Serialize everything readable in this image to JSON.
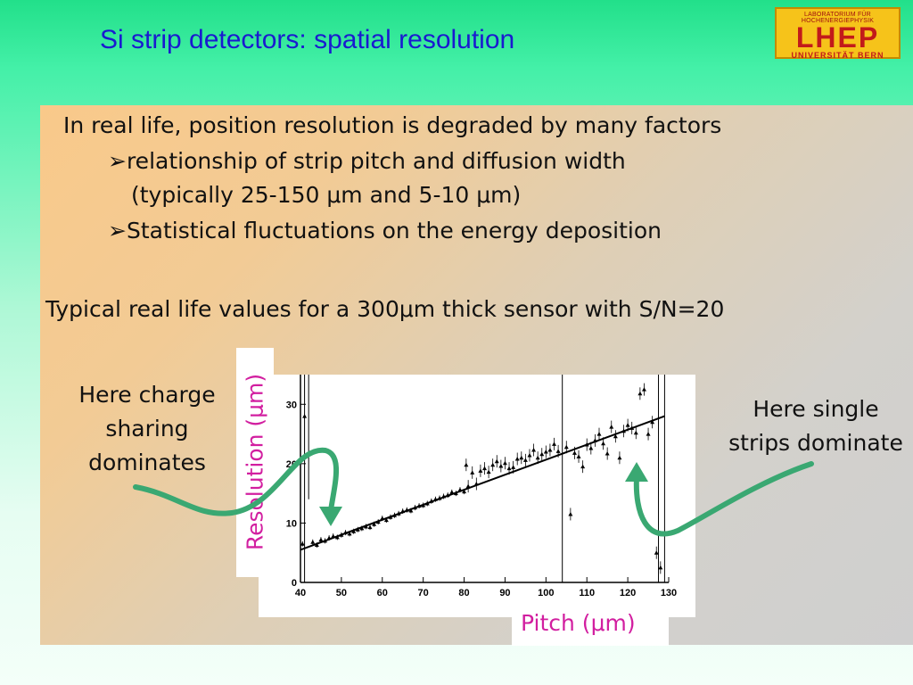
{
  "slide": {
    "title": "Si strip detectors: spatial resolution"
  },
  "logo": {
    "top": "LABORATORIUM FÜR HOCHENERGIEPHYSIK",
    "main": "LHEP",
    "bottom": "UNIVERSITÄT BERN",
    "colors": {
      "background": "#f6c31a",
      "text": "#c21a1a"
    }
  },
  "content": {
    "intro": "In real life, position resolution is degraded by many factors",
    "bullets": [
      {
        "marker": "➢",
        "text": "relationship of strip pitch and diffusion width",
        "continuation": "(typically 25-150 μm and 5-10 μm)"
      },
      {
        "marker": "➢",
        "text": "Statistical fluctuations on the energy deposition"
      }
    ],
    "typical": "Typical real life values for a 300μm thick sensor with S/N=20"
  },
  "annotations": {
    "left": [
      "Here charge",
      "sharing",
      "dominates"
    ],
    "right": [
      "Here single",
      "strips dominate"
    ],
    "arrow_color": "#3aa872"
  },
  "chart_data": {
    "type": "scatter",
    "xlabel": "Pitch (μm)",
    "ylabel": "Resolution (μm)",
    "xlim": [
      40,
      130
    ],
    "ylim": [
      0,
      35
    ],
    "x_ticks": [
      40,
      50,
      60,
      70,
      80,
      90,
      100,
      110,
      120,
      130
    ],
    "y_ticks": [
      0,
      10,
      20,
      30
    ],
    "label_color": "#d21fa0",
    "fit_line": {
      "x": [
        40,
        129
      ],
      "y": [
        5.5,
        28.0
      ]
    },
    "points": [
      {
        "x": 40.5,
        "y": 6.5
      },
      {
        "x": 41,
        "y": 28
      },
      {
        "x": 43,
        "y": 6.8
      },
      {
        "x": 44,
        "y": 6.3
      },
      {
        "x": 45,
        "y": 7.2
      },
      {
        "x": 46,
        "y": 7.0
      },
      {
        "x": 47,
        "y": 7.5
      },
      {
        "x": 48,
        "y": 7.8
      },
      {
        "x": 49,
        "y": 7.6
      },
      {
        "x": 50,
        "y": 8.0
      },
      {
        "x": 51,
        "y": 8.4
      },
      {
        "x": 52,
        "y": 8.2
      },
      {
        "x": 53,
        "y": 8.6
      },
      {
        "x": 54,
        "y": 8.9
      },
      {
        "x": 55,
        "y": 9.1
      },
      {
        "x": 56,
        "y": 9.4
      },
      {
        "x": 57,
        "y": 9.3
      },
      {
        "x": 58,
        "y": 9.8
      },
      {
        "x": 59,
        "y": 10.2
      },
      {
        "x": 60,
        "y": 10.8
      },
      {
        "x": 61,
        "y": 10.5
      },
      {
        "x": 62,
        "y": 11.0
      },
      {
        "x": 63,
        "y": 11.3
      },
      {
        "x": 64,
        "y": 11.6
      },
      {
        "x": 65,
        "y": 12.0
      },
      {
        "x": 66,
        "y": 12.2
      },
      {
        "x": 67,
        "y": 12.1
      },
      {
        "x": 68,
        "y": 12.6
      },
      {
        "x": 69,
        "y": 12.9
      },
      {
        "x": 70,
        "y": 13.0
      },
      {
        "x": 71,
        "y": 13.3
      },
      {
        "x": 72,
        "y": 13.7
      },
      {
        "x": 73,
        "y": 14.0
      },
      {
        "x": 74,
        "y": 14.2
      },
      {
        "x": 75,
        "y": 14.5
      },
      {
        "x": 76,
        "y": 14.7
      },
      {
        "x": 77,
        "y": 15.2
      },
      {
        "x": 78,
        "y": 15.0
      },
      {
        "x": 79,
        "y": 15.6
      },
      {
        "x": 80,
        "y": 15.3
      },
      {
        "x": 80.5,
        "y": 19.8
      },
      {
        "x": 81,
        "y": 16.2
      },
      {
        "x": 82,
        "y": 18.5
      },
      {
        "x": 83,
        "y": 16.6
      },
      {
        "x": 84,
        "y": 18.8
      },
      {
        "x": 85,
        "y": 19.2
      },
      {
        "x": 86,
        "y": 18.6
      },
      {
        "x": 87,
        "y": 19.8
      },
      {
        "x": 88,
        "y": 20.4
      },
      {
        "x": 89,
        "y": 19.6
      },
      {
        "x": 90,
        "y": 20.1
      },
      {
        "x": 91,
        "y": 19.2
      },
      {
        "x": 92,
        "y": 19.4
      },
      {
        "x": 93,
        "y": 20.8
      },
      {
        "x": 94,
        "y": 21.0
      },
      {
        "x": 95,
        "y": 20.6
      },
      {
        "x": 96,
        "y": 21.4
      },
      {
        "x": 97,
        "y": 22.3
      },
      {
        "x": 98,
        "y": 21.0
      },
      {
        "x": 99,
        "y": 21.6
      },
      {
        "x": 100,
        "y": 22.0
      },
      {
        "x": 101,
        "y": 22.3
      },
      {
        "x": 102,
        "y": 23.3
      },
      {
        "x": 103,
        "y": 22.1
      },
      {
        "x": 105,
        "y": 22.8
      },
      {
        "x": 106,
        "y": 11.5
      },
      {
        "x": 107,
        "y": 21.8
      },
      {
        "x": 108,
        "y": 21.2
      },
      {
        "x": 109,
        "y": 19.5
      },
      {
        "x": 110,
        "y": 23.2
      },
      {
        "x": 111,
        "y": 22.6
      },
      {
        "x": 112,
        "y": 23.9
      },
      {
        "x": 113,
        "y": 25.0
      },
      {
        "x": 114,
        "y": 23.4
      },
      {
        "x": 115,
        "y": 21.7
      },
      {
        "x": 116,
        "y": 26.2
      },
      {
        "x": 117,
        "y": 24.6
      },
      {
        "x": 118,
        "y": 21.0
      },
      {
        "x": 119,
        "y": 25.5
      },
      {
        "x": 120,
        "y": 26.5
      },
      {
        "x": 121,
        "y": 26.0
      },
      {
        "x": 122,
        "y": 25.2
      },
      {
        "x": 123,
        "y": 31.8
      },
      {
        "x": 124,
        "y": 32.5
      },
      {
        "x": 125,
        "y": 25.0
      },
      {
        "x": 126,
        "y": 27.0
      },
      {
        "x": 127,
        "y": 5.0
      },
      {
        "x": 128,
        "y": 2.5
      }
    ],
    "long_error_bars": [
      {
        "x": 41,
        "y0": 0,
        "y1": 35
      },
      {
        "x": 42,
        "y0": 14,
        "y1": 35
      },
      {
        "x": 104,
        "y0": 0,
        "y1": 35
      },
      {
        "x": 127.5,
        "y0": 0,
        "y1": 35
      },
      {
        "x": 129,
        "y0": 0,
        "y1": 35
      }
    ]
  }
}
